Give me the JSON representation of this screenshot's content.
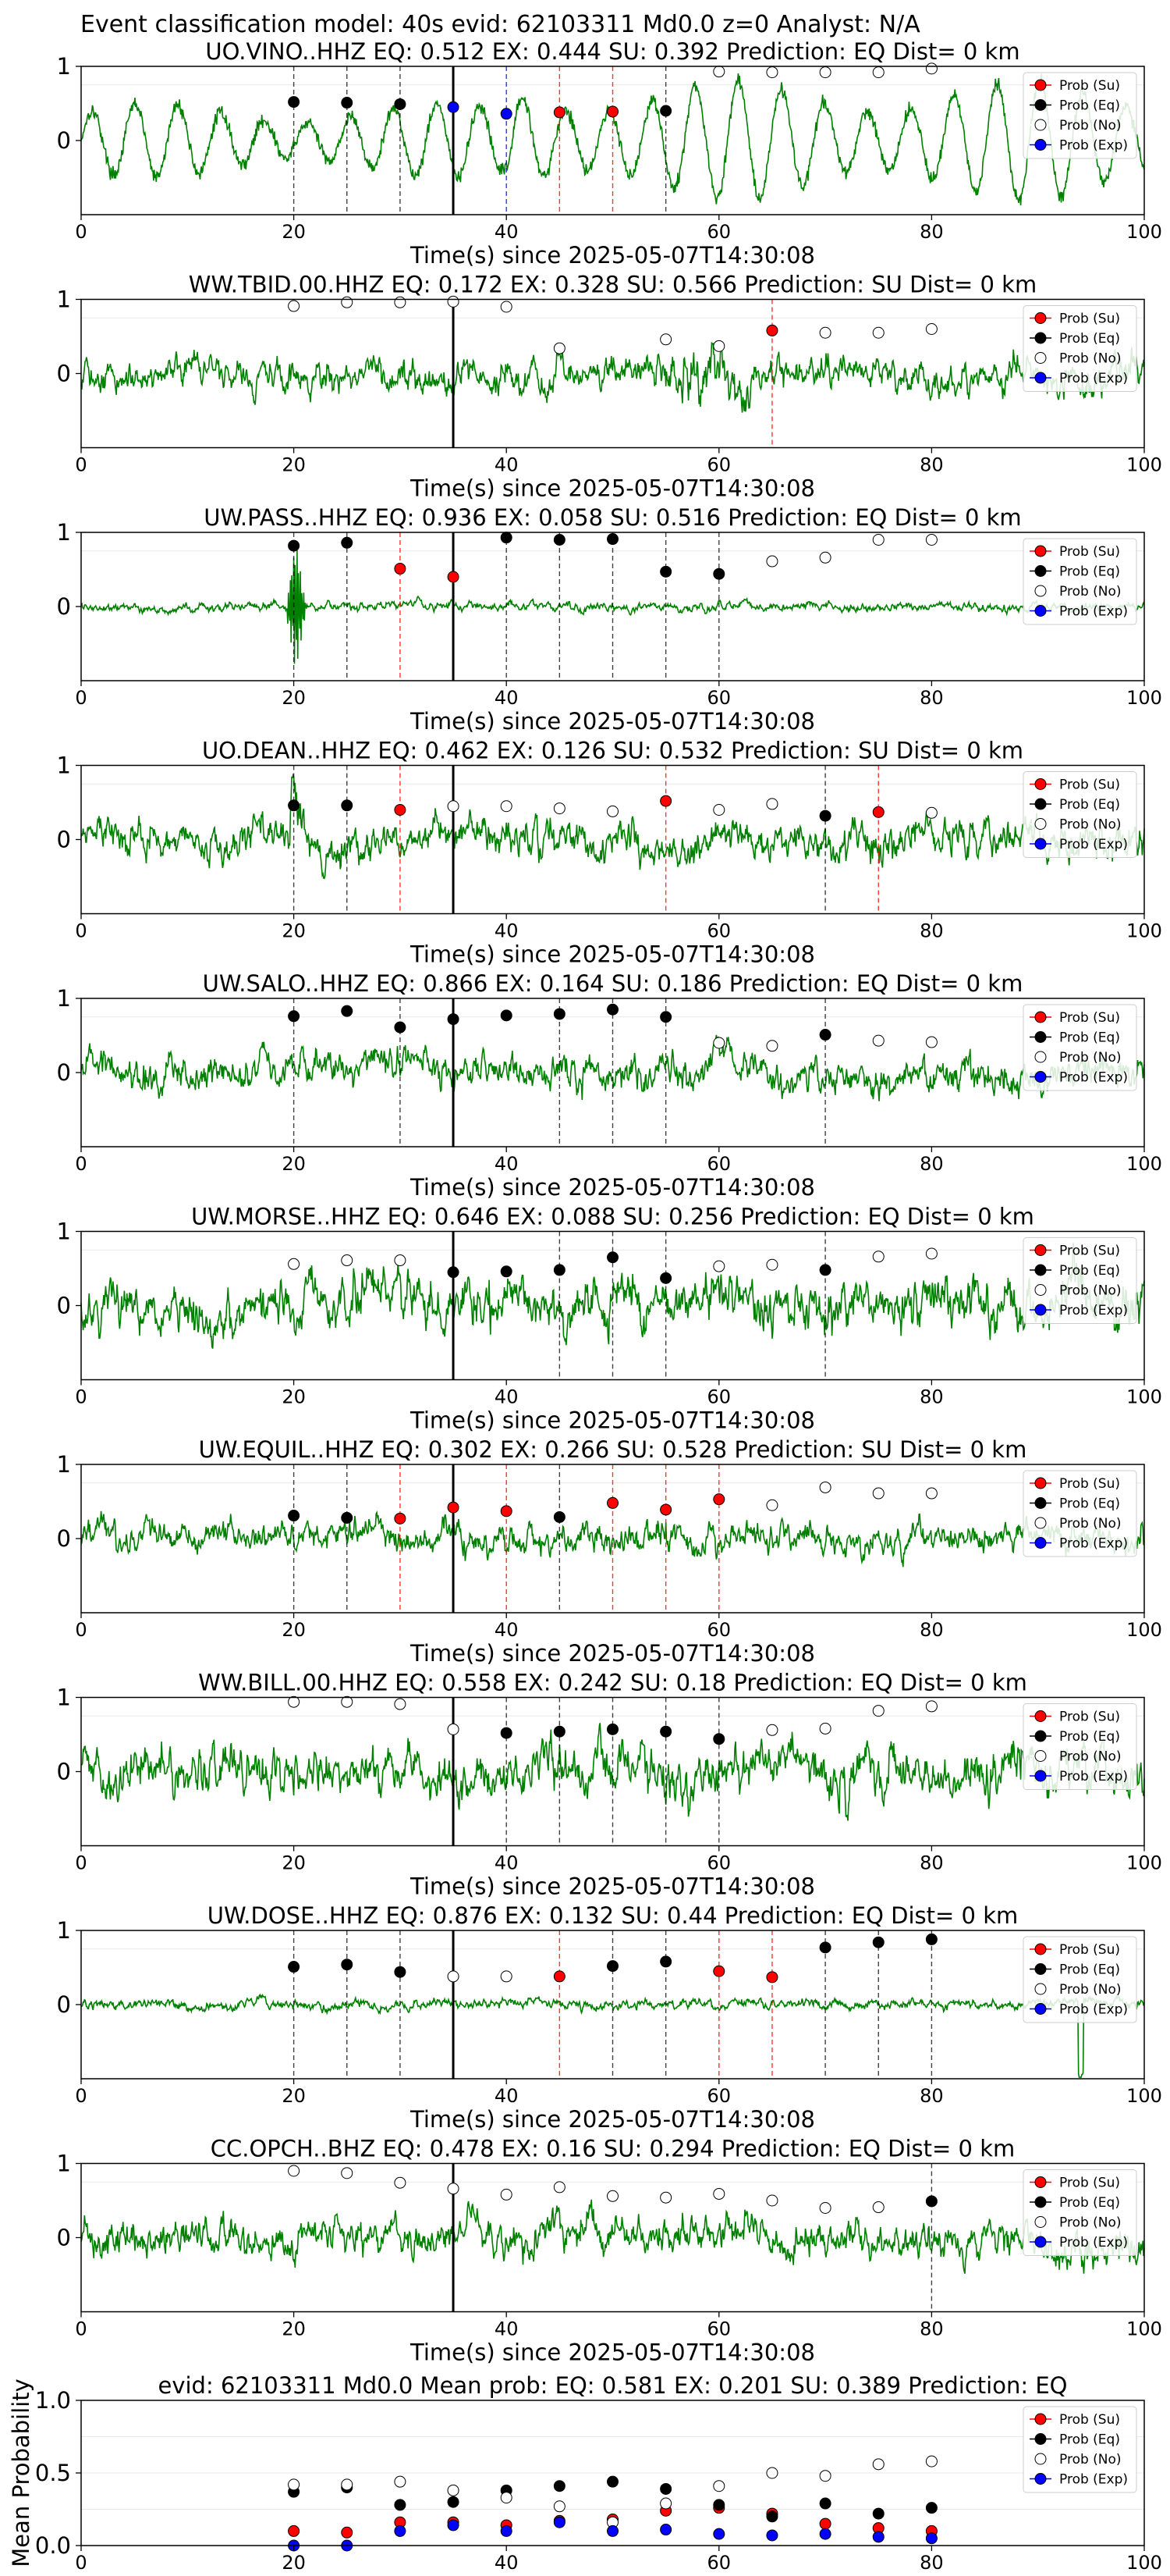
{
  "suptitle": "Event classification model: 40s evid: 62103311 Md0.0 z=0 Analyst: N/A",
  "legend_labels": [
    "Prob (Su)",
    "Prob (Eq)",
    "Prob (No)",
    "Prob (Exp)"
  ],
  "colors": {
    "trace": "#008000",
    "su": "#ff0000",
    "eq": "#000000",
    "no": "#ffffff",
    "exp": "#0000ff",
    "pick": "#000000",
    "su_line": "#ff0000",
    "eq_line": "#000000",
    "exp_line": "#0000ff"
  },
  "chart_data": [
    {
      "type": "line",
      "title": "UO.VINO..HHZ   EQ: 0.512  EX: 0.444  SU: 0.392   Prediction: EQ    Dist= 0 km",
      "xlabel": "Time(s) since 2025-05-07T14:30:08",
      "xlim": [
        0,
        100
      ],
      "ylim": [
        -1,
        1
      ],
      "xticks": [
        0,
        20,
        40,
        60,
        80,
        100
      ],
      "yticks": [
        0,
        1
      ],
      "pick_time": 35,
      "waveform": "low-frequency oscillation, amplitude growing after 40 s",
      "eq_lines": [
        20,
        25,
        30,
        55
      ],
      "su_lines": [
        45,
        50
      ],
      "exp_lines": [
        40
      ],
      "points": {
        "su": [
          [
            45,
            0.38
          ],
          [
            50,
            0.39
          ]
        ],
        "eq": [
          [
            20,
            0.52
          ],
          [
            25,
            0.51
          ],
          [
            30,
            0.49
          ],
          [
            55,
            0.4
          ]
        ],
        "no": [
          [
            60,
            0.93
          ],
          [
            65,
            0.92
          ],
          [
            70,
            0.92
          ],
          [
            75,
            0.92
          ],
          [
            80,
            0.97
          ]
        ],
        "exp": [
          [
            35,
            0.45
          ],
          [
            40,
            0.36
          ]
        ]
      }
    },
    {
      "type": "line",
      "title": "WW.TBID.00.HHZ   EQ: 0.172  EX: 0.328  SU: 0.566   Prediction: SU    Dist= 0 km",
      "xlabel": "Time(s) since 2025-05-07T14:30:08",
      "xlim": [
        0,
        100
      ],
      "ylim": [
        -1,
        1
      ],
      "xticks": [
        0,
        20,
        40,
        60,
        80,
        100
      ],
      "yticks": [
        0,
        1
      ],
      "pick_time": 35,
      "waveform": "broadband noise, larger burst around 55-62 s",
      "eq_lines": [],
      "su_lines": [
        65
      ],
      "exp_lines": [],
      "points": {
        "su": [
          [
            65,
            0.58
          ]
        ],
        "eq": [],
        "no": [
          [
            20,
            0.91
          ],
          [
            25,
            0.96
          ],
          [
            30,
            0.96
          ],
          [
            35,
            0.97
          ],
          [
            40,
            0.9
          ],
          [
            45,
            0.34
          ],
          [
            55,
            0.46
          ],
          [
            60,
            0.37
          ],
          [
            70,
            0.55
          ],
          [
            75,
            0.55
          ],
          [
            80,
            0.6
          ]
        ],
        "exp": []
      }
    },
    {
      "type": "line",
      "title": "UW.PASS..HHZ   EQ: 0.936  EX: 0.058  SU: 0.516   Prediction: EQ    Dist= 0 km",
      "xlabel": "Time(s) since 2025-05-07T14:30:08",
      "xlim": [
        0,
        100
      ],
      "ylim": [
        -1,
        1
      ],
      "xticks": [
        0,
        20,
        40,
        60,
        80,
        100
      ],
      "yticks": [
        0,
        1
      ],
      "pick_time": 35,
      "waveform": "low-amplitude noise with a strong arrival near 20 s",
      "eq_lines": [
        20,
        25,
        40,
        45,
        50,
        55,
        60
      ],
      "su_lines": [
        30
      ],
      "exp_lines": [],
      "points": {
        "su": [
          [
            30,
            0.51
          ],
          [
            35,
            0.4
          ]
        ],
        "eq": [
          [
            20,
            0.82
          ],
          [
            25,
            0.86
          ],
          [
            40,
            0.93
          ],
          [
            45,
            0.9
          ],
          [
            50,
            0.91
          ],
          [
            55,
            0.47
          ],
          [
            60,
            0.44
          ]
        ],
        "no": [
          [
            65,
            0.61
          ],
          [
            70,
            0.66
          ],
          [
            75,
            0.9
          ],
          [
            80,
            0.9
          ]
        ],
        "exp": []
      }
    },
    {
      "type": "line",
      "title": "UO.DEAN..HHZ   EQ: 0.462  EX: 0.126  SU: 0.532   Prediction: SU    Dist= 0 km",
      "xlabel": "Time(s) since 2025-05-07T14:30:08",
      "xlim": [
        0,
        100
      ],
      "ylim": [
        -1,
        1
      ],
      "xticks": [
        0,
        20,
        40,
        60,
        80,
        100
      ],
      "yticks": [
        0,
        1
      ],
      "pick_time": 35,
      "waveform": "moderate noise with bursts",
      "eq_lines": [
        20,
        25,
        70
      ],
      "su_lines": [
        30,
        55,
        75
      ],
      "exp_lines": [],
      "points": {
        "su": [
          [
            30,
            0.4
          ],
          [
            55,
            0.52
          ],
          [
            75,
            0.37
          ]
        ],
        "eq": [
          [
            20,
            0.46
          ],
          [
            25,
            0.46
          ],
          [
            70,
            0.32
          ]
        ],
        "no": [
          [
            35,
            0.45
          ],
          [
            40,
            0.45
          ],
          [
            45,
            0.42
          ],
          [
            50,
            0.38
          ],
          [
            60,
            0.4
          ],
          [
            65,
            0.48
          ],
          [
            80,
            0.36
          ]
        ],
        "exp": []
      }
    },
    {
      "type": "line",
      "title": "UW.SALO..HHZ   EQ: 0.866  EX: 0.164  SU: 0.186   Prediction: EQ    Dist= 0 km",
      "xlabel": "Time(s) since 2025-05-07T14:30:08",
      "xlim": [
        0,
        100
      ],
      "ylim": [
        -1,
        1
      ],
      "xticks": [
        0,
        20,
        40,
        60,
        80,
        100
      ],
      "yticks": [
        0,
        1
      ],
      "pick_time": 35,
      "waveform": "moderate noise",
      "eq_lines": [
        20,
        30,
        45,
        50,
        55,
        70
      ],
      "su_lines": [],
      "exp_lines": [],
      "points": {
        "su": [],
        "eq": [
          [
            20,
            0.76
          ],
          [
            25,
            0.83
          ],
          [
            30,
            0.61
          ],
          [
            35,
            0.72
          ],
          [
            40,
            0.77
          ],
          [
            45,
            0.79
          ],
          [
            50,
            0.85
          ],
          [
            55,
            0.75
          ],
          [
            70,
            0.51
          ]
        ],
        "no": [
          [
            60,
            0.4
          ],
          [
            65,
            0.36
          ],
          [
            75,
            0.43
          ],
          [
            80,
            0.41
          ]
        ],
        "exp": []
      }
    },
    {
      "type": "line",
      "title": "UW.MORSE..HHZ   EQ: 0.646  EX: 0.088  SU: 0.256   Prediction: EQ    Dist= 0 km",
      "xlabel": "Time(s) since 2025-05-07T14:30:08",
      "xlim": [
        0,
        100
      ],
      "ylim": [
        -1,
        1
      ],
      "xticks": [
        0,
        20,
        40,
        60,
        80,
        100
      ],
      "yticks": [
        0,
        1
      ],
      "pick_time": 35,
      "waveform": "high-amplitude noise",
      "eq_lines": [
        45,
        50,
        55,
        70
      ],
      "su_lines": [],
      "exp_lines": [],
      "points": {
        "su": [],
        "eq": [
          [
            35,
            0.45
          ],
          [
            40,
            0.46
          ],
          [
            45,
            0.48
          ],
          [
            50,
            0.65
          ],
          [
            55,
            0.37
          ],
          [
            70,
            0.48
          ]
        ],
        "no": [
          [
            20,
            0.56
          ],
          [
            25,
            0.61
          ],
          [
            30,
            0.61
          ],
          [
            60,
            0.53
          ],
          [
            65,
            0.55
          ],
          [
            75,
            0.66
          ],
          [
            80,
            0.7
          ]
        ],
        "exp": []
      }
    },
    {
      "type": "line",
      "title": "UW.EQUIL..HHZ   EQ: 0.302  EX: 0.266  SU: 0.528   Prediction: SU    Dist= 0 km",
      "xlabel": "Time(s) since 2025-05-07T14:30:08",
      "xlim": [
        0,
        100
      ],
      "ylim": [
        -1,
        1
      ],
      "xticks": [
        0,
        20,
        40,
        60,
        80,
        100
      ],
      "yticks": [
        0,
        1
      ],
      "pick_time": 35,
      "waveform": "moderate noise",
      "eq_lines": [
        20,
        25,
        45
      ],
      "su_lines": [
        30,
        40,
        50,
        55,
        60
      ],
      "exp_lines": [],
      "points": {
        "su": [
          [
            30,
            0.27
          ],
          [
            35,
            0.42
          ],
          [
            40,
            0.37
          ],
          [
            50,
            0.48
          ],
          [
            55,
            0.39
          ],
          [
            60,
            0.53
          ]
        ],
        "eq": [
          [
            20,
            0.31
          ],
          [
            25,
            0.28
          ],
          [
            45,
            0.29
          ]
        ],
        "no": [
          [
            65,
            0.45
          ],
          [
            70,
            0.69
          ],
          [
            75,
            0.61
          ],
          [
            80,
            0.61
          ]
        ],
        "exp": []
      }
    },
    {
      "type": "line",
      "title": "WW.BILL.00.HHZ   EQ: 0.558  EX: 0.242  SU: 0.18   Prediction: EQ    Dist= 0 km",
      "xlabel": "Time(s) since 2025-05-07T14:30:08",
      "xlim": [
        0,
        100
      ],
      "ylim": [
        -1,
        1
      ],
      "xticks": [
        0,
        20,
        40,
        60,
        80,
        100
      ],
      "yticks": [
        0,
        1
      ],
      "pick_time": 35,
      "waveform": "high-amplitude noise",
      "eq_lines": [
        40,
        45,
        50,
        55,
        60
      ],
      "su_lines": [],
      "exp_lines": [],
      "points": {
        "su": [],
        "eq": [
          [
            40,
            0.52
          ],
          [
            45,
            0.54
          ],
          [
            50,
            0.57
          ],
          [
            55,
            0.54
          ],
          [
            60,
            0.44
          ]
        ],
        "no": [
          [
            20,
            0.94
          ],
          [
            25,
            0.94
          ],
          [
            30,
            0.91
          ],
          [
            35,
            0.57
          ],
          [
            65,
            0.56
          ],
          [
            70,
            0.58
          ],
          [
            75,
            0.82
          ],
          [
            80,
            0.88
          ]
        ],
        "exp": []
      }
    },
    {
      "type": "line",
      "title": "UW.DOSE..HHZ   EQ: 0.876  EX: 0.132  SU: 0.44   Prediction: EQ    Dist= 0 km",
      "xlabel": "Time(s) since 2025-05-07T14:30:08",
      "xlim": [
        0,
        100
      ],
      "ylim": [
        -1,
        1
      ],
      "xticks": [
        0,
        20,
        40,
        60,
        80,
        100
      ],
      "yticks": [
        0,
        1
      ],
      "pick_time": 35,
      "waveform": "low-amplitude noise with a spike near 94 s",
      "eq_lines": [
        20,
        25,
        30,
        50,
        55,
        70,
        75,
        80
      ],
      "su_lines": [
        45,
        60,
        65
      ],
      "exp_lines": [],
      "points": {
        "su": [
          [
            45,
            0.38
          ],
          [
            60,
            0.45
          ],
          [
            65,
            0.37
          ]
        ],
        "eq": [
          [
            20,
            0.51
          ],
          [
            25,
            0.54
          ],
          [
            30,
            0.44
          ],
          [
            50,
            0.52
          ],
          [
            55,
            0.58
          ],
          [
            70,
            0.77
          ],
          [
            75,
            0.84
          ],
          [
            80,
            0.88
          ]
        ],
        "no": [
          [
            35,
            0.38
          ],
          [
            40,
            0.38
          ]
        ],
        "exp": []
      }
    },
    {
      "type": "line",
      "title": "CC.OPCH..BHZ   EQ: 0.478  EX: 0.16  SU: 0.294   Prediction: EQ    Dist= 0 km",
      "xlabel": "Time(s) since 2025-05-07T14:30:08",
      "xlim": [
        0,
        100
      ],
      "ylim": [
        -1,
        1
      ],
      "xticks": [
        0,
        20,
        40,
        60,
        80,
        100
      ],
      "yticks": [
        0,
        1
      ],
      "pick_time": 35,
      "waveform": "moderate noise",
      "eq_lines": [
        80
      ],
      "su_lines": [],
      "exp_lines": [],
      "points": {
        "su": [],
        "eq": [
          [
            80,
            0.49
          ]
        ],
        "no": [
          [
            20,
            0.9
          ],
          [
            25,
            0.87
          ],
          [
            30,
            0.74
          ],
          [
            35,
            0.66
          ],
          [
            40,
            0.58
          ],
          [
            45,
            0.68
          ],
          [
            50,
            0.56
          ],
          [
            55,
            0.54
          ],
          [
            60,
            0.59
          ],
          [
            65,
            0.5
          ],
          [
            70,
            0.4
          ],
          [
            75,
            0.41
          ]
        ],
        "exp": []
      }
    },
    {
      "type": "scatter",
      "title": "evid: 62103311  Md0.0   Mean prob:   EQ: 0.581  EX: 0.201  SU: 0.389   Prediction: EQ",
      "ylabel": "Mean Probability",
      "xlim": [
        0,
        100
      ],
      "ylim": [
        0,
        1
      ],
      "xticks": [
        0,
        20,
        40,
        60,
        80,
        100
      ],
      "yticks": [
        "0.0",
        "0.5",
        "1.0"
      ],
      "points": {
        "su": [
          [
            20,
            0.1
          ],
          [
            25,
            0.09
          ],
          [
            30,
            0.16
          ],
          [
            35,
            0.16
          ],
          [
            40,
            0.14
          ],
          [
            45,
            0.17
          ],
          [
            50,
            0.18
          ],
          [
            55,
            0.24
          ],
          [
            60,
            0.26
          ],
          [
            65,
            0.22
          ],
          [
            70,
            0.15
          ],
          [
            75,
            0.12
          ],
          [
            80,
            0.1
          ]
        ],
        "eq": [
          [
            20,
            0.37
          ],
          [
            25,
            0.4
          ],
          [
            30,
            0.28
          ],
          [
            35,
            0.3
          ],
          [
            40,
            0.38
          ],
          [
            45,
            0.41
          ],
          [
            50,
            0.44
          ],
          [
            55,
            0.39
          ],
          [
            60,
            0.28
          ],
          [
            65,
            0.2
          ],
          [
            70,
            0.29
          ],
          [
            75,
            0.22
          ],
          [
            80,
            0.26
          ]
        ],
        "no": [
          [
            20,
            0.42
          ],
          [
            25,
            0.42
          ],
          [
            30,
            0.44
          ],
          [
            35,
            0.38
          ],
          [
            40,
            0.33
          ],
          [
            45,
            0.27
          ],
          [
            50,
            0.16
          ],
          [
            55,
            0.29
          ],
          [
            60,
            0.41
          ],
          [
            65,
            0.5
          ],
          [
            70,
            0.48
          ],
          [
            75,
            0.56
          ],
          [
            80,
            0.58
          ]
        ],
        "exp": [
          [
            20,
            0.0
          ],
          [
            25,
            0.0
          ],
          [
            30,
            0.1
          ],
          [
            35,
            0.14
          ],
          [
            40,
            0.1
          ],
          [
            45,
            0.16
          ],
          [
            50,
            0.1
          ],
          [
            55,
            0.11
          ],
          [
            60,
            0.08
          ],
          [
            65,
            0.07
          ],
          [
            70,
            0.08
          ],
          [
            75,
            0.06
          ],
          [
            80,
            0.05
          ]
        ]
      }
    }
  ]
}
